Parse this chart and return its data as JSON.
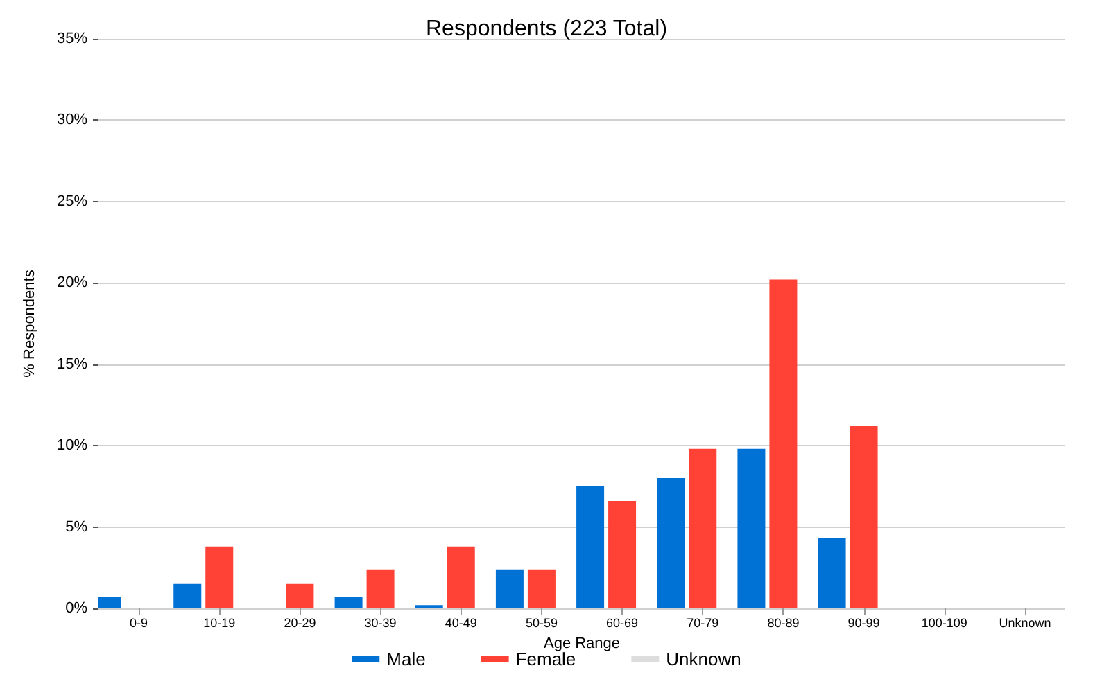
{
  "chart_data": {
    "type": "bar",
    "title": "Respondents (223 Total)",
    "xlabel": "Age Range",
    "ylabel": "% Respondents",
    "categories": [
      "0-9",
      "10-19",
      "20-29",
      "30-39",
      "40-49",
      "50-59",
      "60-69",
      "70-79",
      "80-89",
      "90-99",
      "100-109",
      "Unknown"
    ],
    "series": [
      {
        "name": "Male",
        "color": "#0072d6",
        "values": [
          0.7,
          1.5,
          0,
          0.7,
          0.2,
          2.4,
          7.5,
          8.0,
          9.8,
          4.3,
          0,
          0
        ]
      },
      {
        "name": "Female",
        "color": "#ff4136",
        "values": [
          0,
          3.8,
          1.5,
          2.4,
          3.8,
          2.4,
          6.6,
          9.8,
          20.2,
          11.2,
          0,
          0
        ]
      },
      {
        "name": "Unknown",
        "color": "#dddddd",
        "values": [
          0,
          0,
          0,
          0,
          0,
          0,
          0,
          0,
          0,
          0,
          0,
          0
        ]
      }
    ],
    "ylim": [
      0,
      35
    ],
    "yticks": [
      {
        "value": 0,
        "label": "0%"
      },
      {
        "value": 5,
        "label": "5%"
      },
      {
        "value": 10,
        "label": "10%"
      },
      {
        "value": 15,
        "label": "15%"
      },
      {
        "value": 20,
        "label": "20%"
      },
      {
        "value": 25,
        "label": "25%"
      },
      {
        "value": 30,
        "label": "30%"
      },
      {
        "value": 35,
        "label": "35%"
      }
    ],
    "grid": "y",
    "legend": "bottom"
  }
}
